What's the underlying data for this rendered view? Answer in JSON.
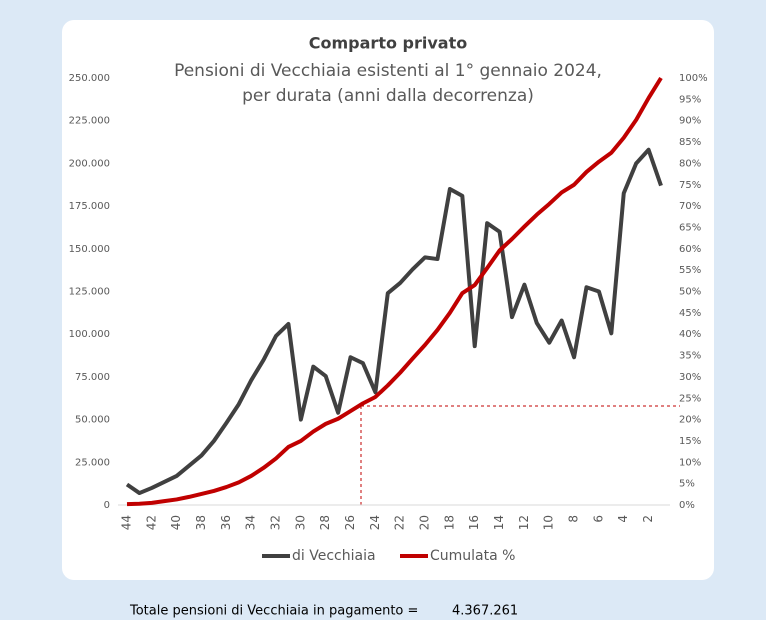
{
  "chart_data": {
    "type": "line",
    "title": "Comparto privato",
    "subtitle": [
      "Pensioni di Vecchiaia esistenti al 1° gennaio 2024,",
      "per durata (anni dalla decorrenza)"
    ],
    "categories": [
      "44",
      null,
      "42",
      null,
      "40",
      null,
      "38",
      null,
      "36",
      null,
      "34",
      null,
      "32",
      null,
      "30",
      null,
      "28",
      null,
      "26",
      null,
      "24",
      null,
      "22",
      null,
      "20",
      null,
      "18",
      null,
      "16",
      null,
      "14",
      null,
      "12",
      null,
      "10",
      null,
      "8",
      null,
      "6",
      null,
      "4",
      null,
      "2",
      null
    ],
    "series": [
      {
        "name": "di Vecchiaia",
        "color": "#404040",
        "values": [
          12000,
          7000,
          10000,
          13500,
          17000,
          23000,
          29000,
          37500,
          48000,
          59000,
          73000,
          85000,
          99000,
          106000,
          50000,
          81000,
          75500,
          54000,
          86500,
          83000,
          66000,
          124000,
          130000,
          138000,
          145000,
          144000,
          185000,
          181000,
          93000,
          165000,
          160000,
          110000,
          129000,
          106500,
          95000,
          108000,
          86500,
          127500,
          125000,
          100500,
          182500,
          200000,
          208000,
          187000
        ]
      },
      {
        "name": "Cumulata %",
        "color": "#c00000",
        "axis": "y2",
        "values": [
          0.2,
          0.3,
          0.5,
          0.9,
          1.3,
          1.9,
          2.6,
          3.3,
          4.2,
          5.3,
          6.8,
          8.7,
          10.9,
          13.6,
          15,
          17.2,
          19,
          20.2,
          22,
          23.8,
          25.3,
          28,
          31,
          34.3,
          37.5,
          41,
          45,
          49.6,
          51.5,
          55.5,
          59.6,
          62.3,
          65.2,
          68,
          70.5,
          73.2,
          75,
          78,
          80.4,
          82.5,
          86,
          90.2,
          95.3,
          100
        ]
      }
    ],
    "ylim": [
      0,
      250000
    ],
    "yticks": [
      0,
      {
        "value": 25000,
        "label": "25.000"
      },
      {
        "value": 50000,
        "label": "50.000"
      },
      {
        "value": 75000,
        "label": "75.000"
      },
      {
        "value": 100000,
        "label": "100.000"
      },
      {
        "value": 125000,
        "label": "125.000"
      },
      {
        "value": 150000,
        "label": "150.000"
      },
      {
        "value": 175000,
        "label": "175.000"
      },
      {
        "value": 200000,
        "label": "200.000"
      },
      {
        "value": 225000,
        "label": "225.000"
      },
      {
        "value": 250000,
        "label": "250.000"
      }
    ],
    "y2lim": [
      0,
      100
    ],
    "y2ticks": [
      {
        "value": 0,
        "label": "0%"
      },
      {
        "value": 5,
        "label": "5%"
      },
      {
        "value": 10,
        "label": "10%"
      },
      {
        "value": 15,
        "label": "15%"
      },
      {
        "value": 20,
        "label": "20%"
      },
      {
        "value": 25,
        "label": "25%"
      },
      {
        "value": 30,
        "label": "30%"
      },
      {
        "value": 35,
        "label": "35%"
      },
      {
        "value": 40,
        "label": "40%"
      },
      {
        "value": 45,
        "label": "45%"
      },
      {
        "value": 50,
        "label": "50%"
      },
      {
        "value": 55,
        "label": "55%"
      },
      {
        "value": 60,
        "label": "60%"
      },
      {
        "value": 65,
        "label": "65%"
      },
      {
        "value": 70,
        "label": "70%"
      },
      {
        "value": 75,
        "label": "75%"
      },
      {
        "value": 80,
        "label": "80%"
      },
      {
        "value": 85,
        "label": "85%"
      },
      {
        "value": 90,
        "label": "90%"
      },
      {
        "value": 95,
        "label": "95%"
      },
      {
        "value": 100,
        "label": "100%"
      }
    ],
    "legend": "bottom"
  },
  "footer": {
    "label": "Totale pensioni di Vecchiaia in pagamento =",
    "total": "4.367.261"
  }
}
